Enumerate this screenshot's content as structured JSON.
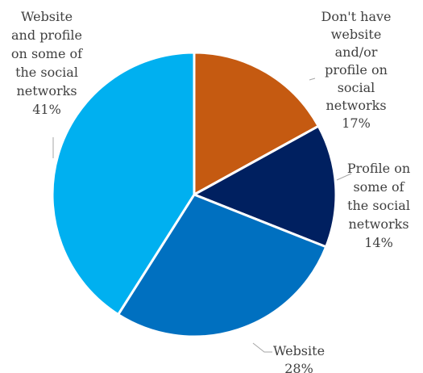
{
  "chart_data": {
    "type": "pie",
    "start_angle_deg": 0,
    "direction": "clockwise",
    "slices": [
      {
        "label": "Don't have website and/or profile on social networks",
        "value": 17,
        "pct_label": "17%",
        "color": "#C55A11"
      },
      {
        "label": "Profile on some of the social networks",
        "value": 14,
        "pct_label": "14%",
        "color": "#002060"
      },
      {
        "label": "Website",
        "value": 28,
        "pct_label": "28%",
        "color": "#0070C0"
      },
      {
        "label": "Website and profile on some of the social networks",
        "value": 41,
        "pct_label": "41%",
        "color": "#00B0F0"
      }
    ],
    "labels_text": [
      [
        "Don't have",
        "website",
        "and/or",
        "profile on",
        "social",
        "networks",
        "17%"
      ],
      [
        "Profile on",
        "some of",
        "the social",
        "networks",
        "14%"
      ],
      [
        "Website",
        "28%"
      ],
      [
        "Website",
        "and profile",
        "on some of",
        "the social",
        "networks",
        "41%"
      ]
    ],
    "title": "",
    "legend": "none"
  }
}
